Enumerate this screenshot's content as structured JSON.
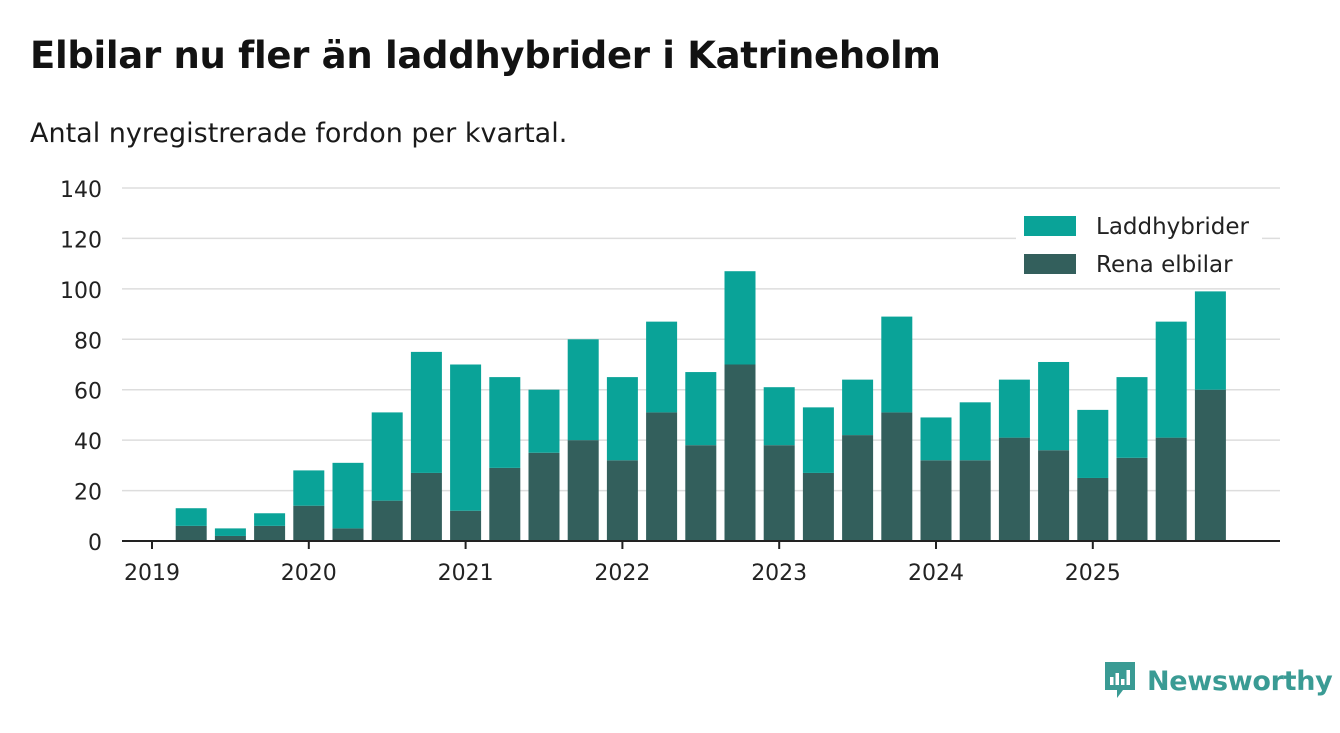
{
  "title": "Elbilar nu fler än laddhybrider i Katrineholm",
  "subtitle": "Antal nyregistrerade fordon per kvartal.",
  "brand": {
    "name": "Newsworthy",
    "icon": "newsworthy-logo-icon"
  },
  "colors": {
    "laddhybrider": "#0aa398",
    "elbilar": "#335f5c",
    "grid": "#dddddd",
    "axis": "#222222",
    "brand": "#3a9b94"
  },
  "chart_data": {
    "type": "bar",
    "stacked": true,
    "title": "Elbilar nu fler än laddhybrider i Katrineholm",
    "subtitle": "Antal nyregistrerade fordon per kvartal.",
    "xlabel": "",
    "ylabel": "",
    "ylim": [
      0,
      140
    ],
    "yticks": [
      0,
      20,
      40,
      60,
      80,
      100,
      120,
      140
    ],
    "xtick_labels": [
      "2019",
      "2020",
      "2021",
      "2022",
      "2023",
      "2024",
      "2025"
    ],
    "categories": [
      "2019 Q1",
      "2019 Q2",
      "2019 Q3",
      "2019 Q4",
      "2020 Q1",
      "2020 Q2",
      "2020 Q3",
      "2020 Q4",
      "2021 Q1",
      "2021 Q2",
      "2021 Q3",
      "2021 Q4",
      "2022 Q1",
      "2022 Q2",
      "2022 Q3",
      "2022 Q4",
      "2023 Q1",
      "2023 Q2",
      "2023 Q3",
      "2023 Q4",
      "2024 Q1",
      "2024 Q2",
      "2024 Q3",
      "2024 Q4",
      "2025 Q1",
      "2025 Q2",
      "2025 Q3",
      "2025 Q4"
    ],
    "legend_position": "top-right",
    "series": [
      {
        "name": "Rena elbilar",
        "values": [
          0,
          6,
          2,
          6,
          14,
          5,
          16,
          27,
          12,
          29,
          35,
          40,
          32,
          51,
          38,
          70,
          38,
          27,
          42,
          51,
          32,
          32,
          41,
          36,
          25,
          33,
          41,
          60
        ]
      },
      {
        "name": "Laddhybrider",
        "values": [
          0,
          7,
          3,
          5,
          14,
          26,
          35,
          48,
          58,
          36,
          25,
          40,
          33,
          36,
          29,
          37,
          23,
          26,
          22,
          38,
          17,
          23,
          23,
          35,
          27,
          32,
          46,
          39
        ]
      }
    ],
    "legend": [
      "Laddhybrider",
      "Rena elbilar"
    ]
  }
}
